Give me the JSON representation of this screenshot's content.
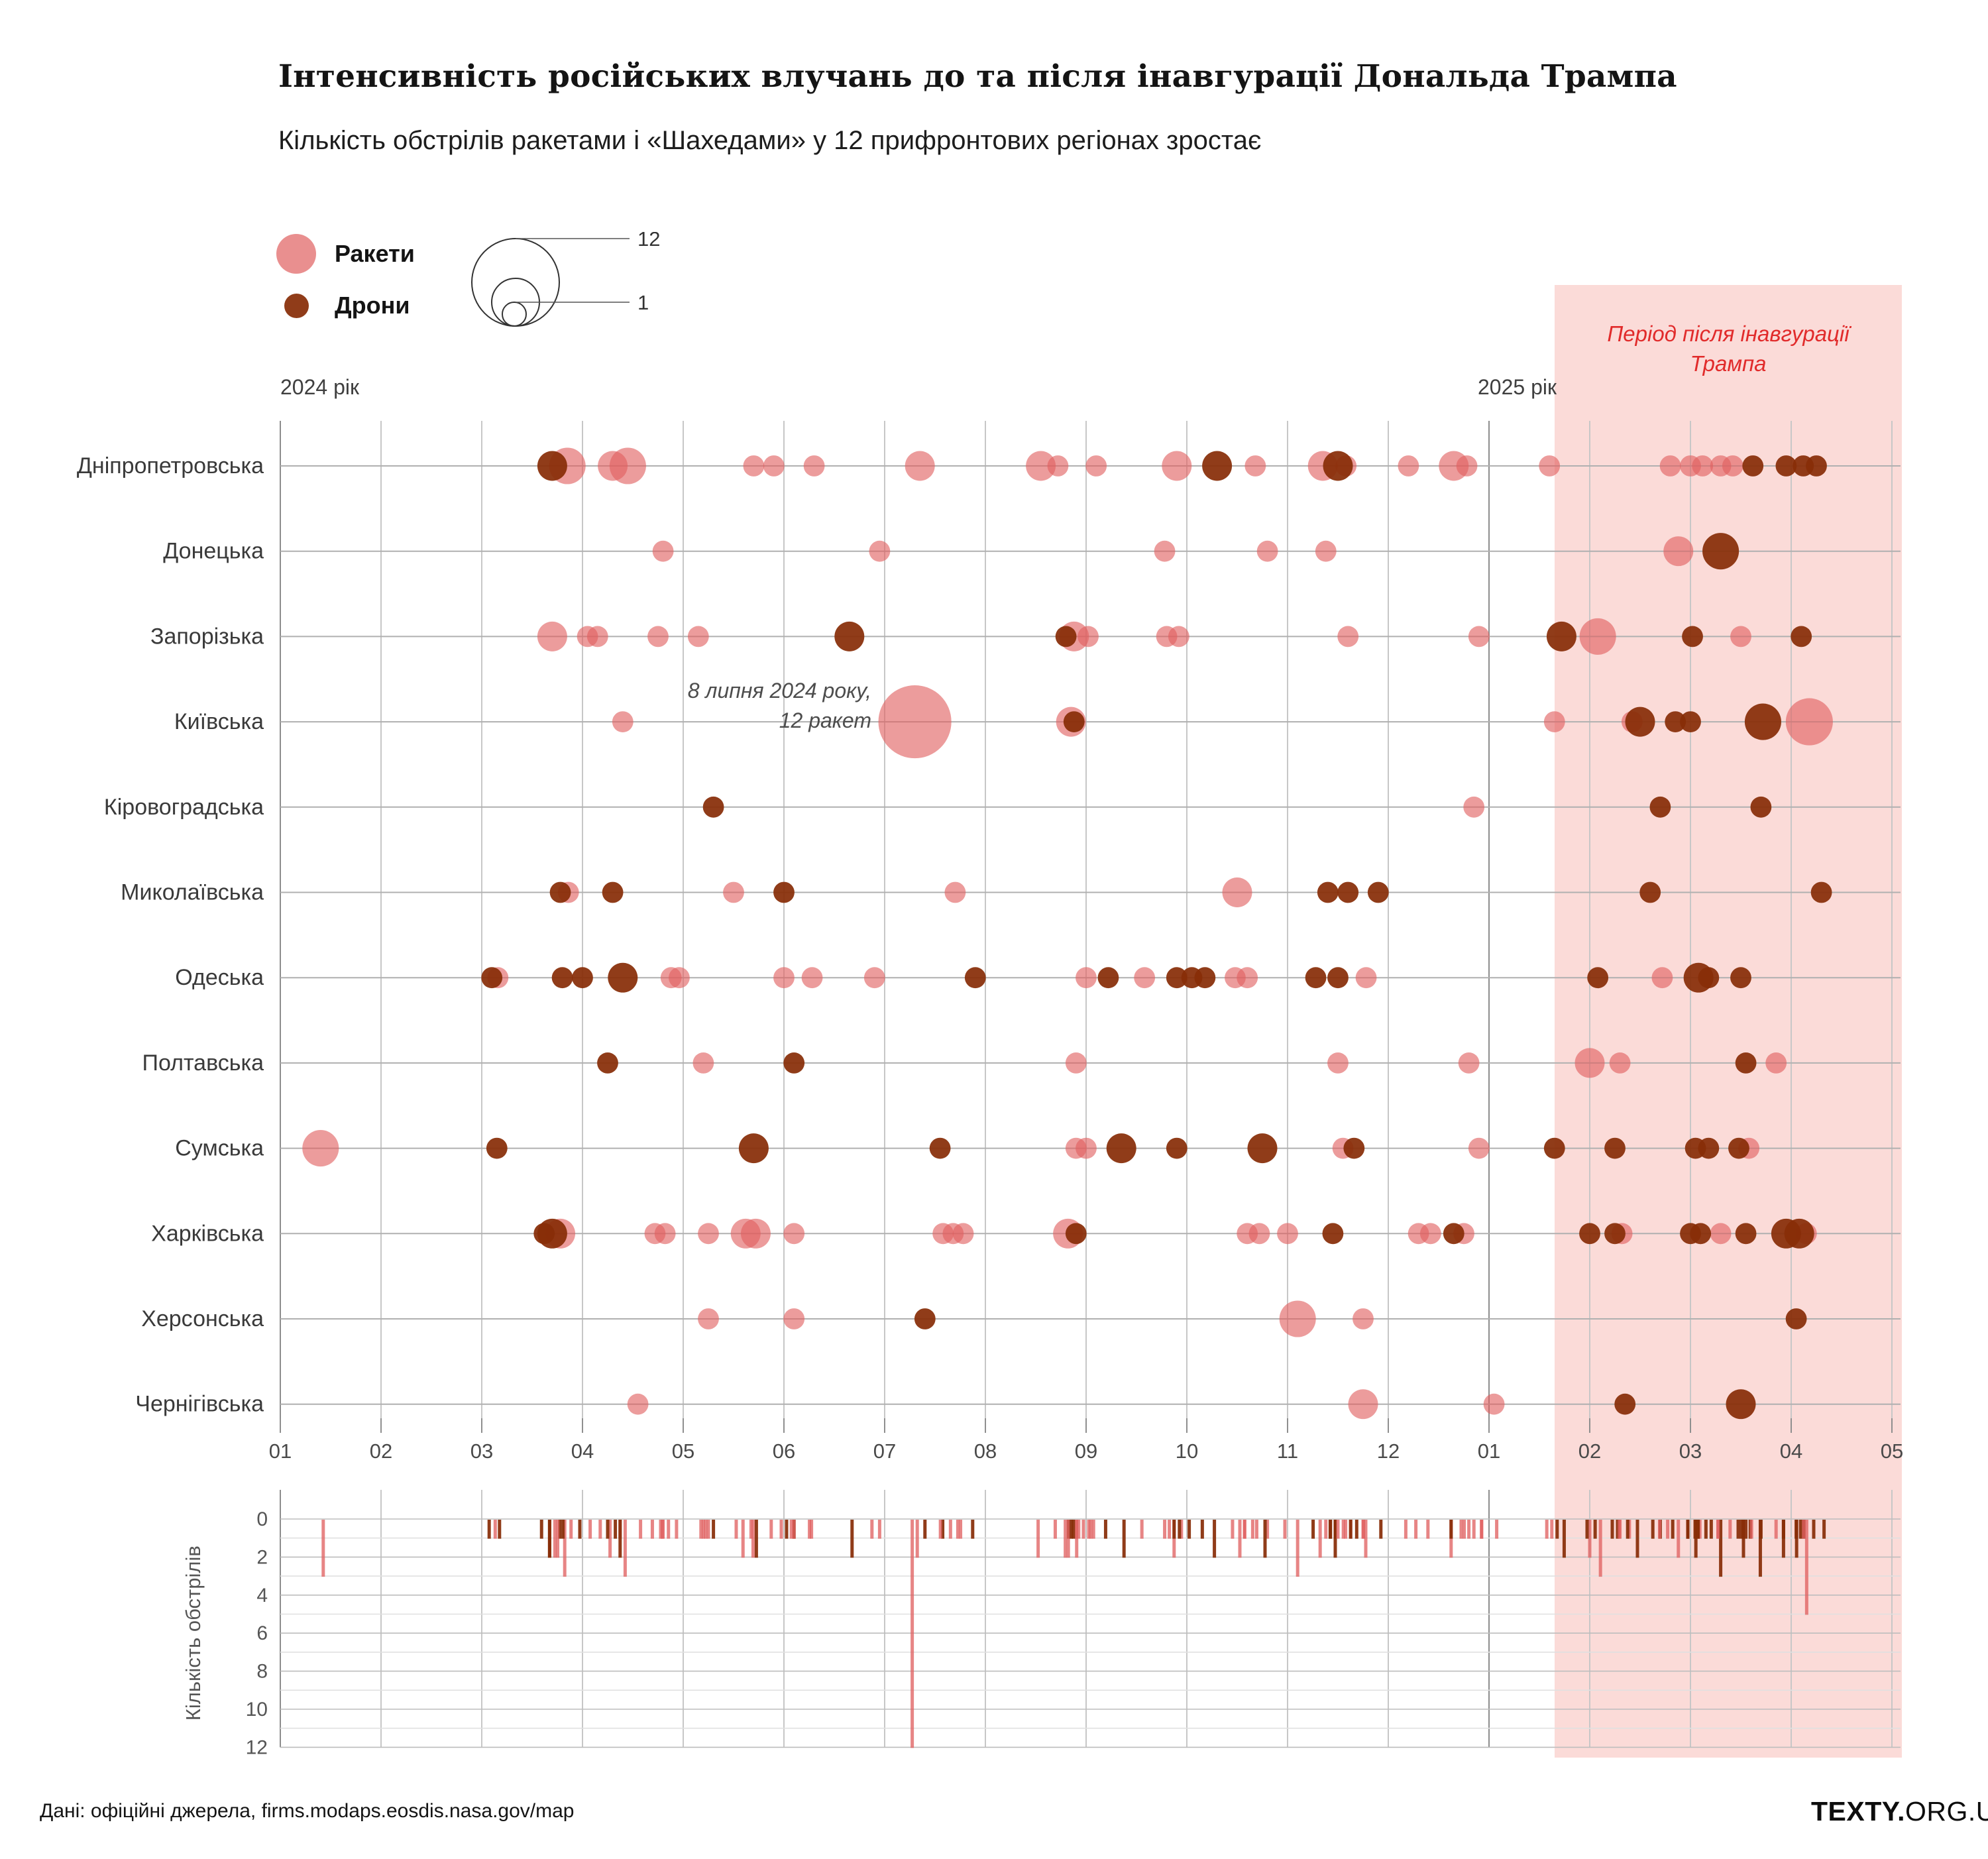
{
  "title": "Інтенсивність російських влучань до та після інавгурації Дональда Трампа",
  "subtitle": "Кількість обстрілів ракетами і «Шахедами» у 12 прифронтових регіонах зростає",
  "legend": {
    "missiles_label": "Ракети",
    "drones_label": "Дрони",
    "size_max_label": "12",
    "size_min_label": "1"
  },
  "band": {
    "label": "Період після інавгурації Трампа",
    "starts_at_month": 13.65
  },
  "annotation": {
    "line1": "8 липня 2024 року,",
    "line2": "12 ракет"
  },
  "year_labels": {
    "y2024": "2024 рік",
    "y2025": "2025 рік"
  },
  "footer": {
    "source": "Дані: офіційні джерела, firms.modaps.eosdis.nasa.gov/map",
    "logo_bold": "TEXTY.",
    "logo_rest": "ORG.UA"
  },
  "colors": {
    "missile_fill": "#e06060",
    "missile_opacity": 0.62,
    "drone_fill": "#882d08",
    "drone_opacity": 0.93,
    "band_fill": "#fbdbd8",
    "band_text": "#e12b2b",
    "grid_month": "#c7c7c7",
    "grid_year": "#8d8d8d",
    "grid_row": "#b0b0b0",
    "bottom_grid_minor": "#e0e0e0",
    "bottom_grid_major": "#bdbdbd"
  },
  "chart_data": {
    "type": "scatter",
    "title": "Інтенсивність російських влучань до та після інавгурації Дональда Трампа",
    "x_scale_note": "month position: 1 = січень 2024, 13 = січень 2025, 17 = травень 2025",
    "month_labels": [
      "01",
      "02",
      "03",
      "04",
      "05",
      "06",
      "07",
      "08",
      "09",
      "10",
      "11",
      "12",
      "01",
      "02",
      "03",
      "04",
      "05"
    ],
    "regions": [
      "Дніпропетровська",
      "Донецька",
      "Запорізька",
      "Київська",
      "Кіровоградська",
      "Миколаївська",
      "Одеська",
      "Полтавська",
      "Сумська",
      "Харківська",
      "Херсонська",
      "Чернігівська"
    ],
    "size_range": [
      1,
      12
    ],
    "points_columns": [
      "region_index",
      "month_position",
      "type (m = ракета/missile, d = дрон/drone)",
      "count"
    ],
    "points": [
      [
        0,
        3.7,
        "d",
        2
      ],
      [
        0,
        3.85,
        "m",
        3
      ],
      [
        0,
        4.3,
        "m",
        2
      ],
      [
        0,
        4.45,
        "m",
        3
      ],
      [
        0,
        5.7,
        "m",
        1
      ],
      [
        0,
        5.9,
        "m",
        1
      ],
      [
        0,
        6.3,
        "m",
        1
      ],
      [
        0,
        7.35,
        "m",
        2
      ],
      [
        0,
        8.55,
        "m",
        2
      ],
      [
        0,
        8.72,
        "m",
        1
      ],
      [
        0,
        9.1,
        "m",
        1
      ],
      [
        0,
        9.9,
        "m",
        2
      ],
      [
        0,
        10.3,
        "d",
        2
      ],
      [
        0,
        10.68,
        "m",
        1
      ],
      [
        0,
        11.35,
        "m",
        2
      ],
      [
        0,
        11.5,
        "d",
        2
      ],
      [
        0,
        11.58,
        "m",
        1
      ],
      [
        0,
        12.2,
        "m",
        1
      ],
      [
        0,
        12.65,
        "m",
        2
      ],
      [
        0,
        12.78,
        "m",
        1
      ],
      [
        0,
        13.6,
        "m",
        1
      ],
      [
        0,
        14.8,
        "m",
        1
      ],
      [
        0,
        15.0,
        "m",
        1
      ],
      [
        0,
        15.12,
        "m",
        1
      ],
      [
        0,
        15.3,
        "m",
        1
      ],
      [
        0,
        15.42,
        "m",
        1
      ],
      [
        0,
        15.62,
        "d",
        1
      ],
      [
        0,
        15.95,
        "d",
        1
      ],
      [
        0,
        16.12,
        "d",
        1
      ],
      [
        0,
        16.25,
        "d",
        1
      ],
      [
        1,
        4.8,
        "m",
        1
      ],
      [
        1,
        6.95,
        "m",
        1
      ],
      [
        1,
        9.78,
        "m",
        1
      ],
      [
        1,
        10.8,
        "m",
        1
      ],
      [
        1,
        11.38,
        "m",
        1
      ],
      [
        1,
        14.88,
        "m",
        2
      ],
      [
        1,
        15.3,
        "d",
        3
      ],
      [
        2,
        3.7,
        "m",
        2
      ],
      [
        2,
        4.05,
        "m",
        1
      ],
      [
        2,
        4.15,
        "m",
        1
      ],
      [
        2,
        4.75,
        "m",
        1
      ],
      [
        2,
        5.15,
        "m",
        1
      ],
      [
        2,
        6.65,
        "d",
        2
      ],
      [
        2,
        8.8,
        "d",
        1
      ],
      [
        2,
        8.88,
        "m",
        2
      ],
      [
        2,
        9.02,
        "m",
        1
      ],
      [
        2,
        9.8,
        "m",
        1
      ],
      [
        2,
        9.92,
        "m",
        1
      ],
      [
        2,
        11.6,
        "m",
        1
      ],
      [
        2,
        12.9,
        "m",
        1
      ],
      [
        2,
        13.72,
        "d",
        2
      ],
      [
        2,
        14.08,
        "m",
        3
      ],
      [
        2,
        15.02,
        "d",
        1
      ],
      [
        2,
        15.5,
        "m",
        1
      ],
      [
        2,
        16.1,
        "d",
        1
      ],
      [
        3,
        4.4,
        "m",
        1
      ],
      [
        3,
        7.3,
        "m",
        12
      ],
      [
        3,
        8.85,
        "m",
        2
      ],
      [
        3,
        8.88,
        "d",
        1
      ],
      [
        3,
        13.65,
        "m",
        1
      ],
      [
        3,
        14.42,
        "m",
        1
      ],
      [
        3,
        14.5,
        "d",
        2
      ],
      [
        3,
        14.85,
        "d",
        1
      ],
      [
        3,
        15.0,
        "d",
        1
      ],
      [
        3,
        15.72,
        "d",
        3
      ],
      [
        3,
        16.18,
        "m",
        5
      ],
      [
        4,
        5.3,
        "d",
        1
      ],
      [
        4,
        12.85,
        "m",
        1
      ],
      [
        4,
        14.7,
        "d",
        1
      ],
      [
        4,
        15.7,
        "d",
        1
      ],
      [
        5,
        3.78,
        "d",
        1
      ],
      [
        5,
        3.86,
        "m",
        1
      ],
      [
        5,
        4.3,
        "d",
        1
      ],
      [
        5,
        5.5,
        "m",
        1
      ],
      [
        5,
        6.0,
        "d",
        1
      ],
      [
        5,
        7.7,
        "m",
        1
      ],
      [
        5,
        10.5,
        "m",
        2
      ],
      [
        5,
        11.4,
        "d",
        1
      ],
      [
        5,
        11.6,
        "d",
        1
      ],
      [
        5,
        11.9,
        "d",
        1
      ],
      [
        5,
        14.6,
        "d",
        1
      ],
      [
        5,
        16.3,
        "d",
        1
      ],
      [
        6,
        3.1,
        "d",
        1
      ],
      [
        6,
        3.16,
        "m",
        1
      ],
      [
        6,
        3.8,
        "d",
        1
      ],
      [
        6,
        4.0,
        "d",
        1
      ],
      [
        6,
        4.4,
        "d",
        2
      ],
      [
        6,
        4.88,
        "m",
        1
      ],
      [
        6,
        4.96,
        "m",
        1
      ],
      [
        6,
        6.0,
        "m",
        1
      ],
      [
        6,
        6.28,
        "m",
        1
      ],
      [
        6,
        6.9,
        "m",
        1
      ],
      [
        6,
        7.9,
        "d",
        1
      ],
      [
        6,
        9.0,
        "m",
        1
      ],
      [
        6,
        9.22,
        "d",
        1
      ],
      [
        6,
        9.58,
        "m",
        1
      ],
      [
        6,
        9.9,
        "d",
        1
      ],
      [
        6,
        10.05,
        "d",
        1
      ],
      [
        6,
        10.18,
        "d",
        1
      ],
      [
        6,
        10.48,
        "m",
        1
      ],
      [
        6,
        10.6,
        "m",
        1
      ],
      [
        6,
        11.28,
        "d",
        1
      ],
      [
        6,
        11.5,
        "d",
        1
      ],
      [
        6,
        11.78,
        "m",
        1
      ],
      [
        6,
        14.08,
        "d",
        1
      ],
      [
        6,
        14.72,
        "m",
        1
      ],
      [
        6,
        15.08,
        "d",
        2
      ],
      [
        6,
        15.18,
        "d",
        1
      ],
      [
        6,
        15.5,
        "d",
        1
      ],
      [
        7,
        4.25,
        "d",
        1
      ],
      [
        7,
        5.2,
        "m",
        1
      ],
      [
        7,
        6.1,
        "d",
        1
      ],
      [
        7,
        8.9,
        "m",
        1
      ],
      [
        7,
        11.5,
        "m",
        1
      ],
      [
        7,
        12.8,
        "m",
        1
      ],
      [
        7,
        14.0,
        "m",
        2
      ],
      [
        7,
        14.3,
        "m",
        1
      ],
      [
        7,
        15.55,
        "d",
        1
      ],
      [
        7,
        15.85,
        "m",
        1
      ],
      [
        8,
        1.4,
        "m",
        3
      ],
      [
        8,
        3.15,
        "d",
        1
      ],
      [
        8,
        5.7,
        "d",
        2
      ],
      [
        8,
        7.55,
        "d",
        1
      ],
      [
        8,
        8.9,
        "m",
        1
      ],
      [
        8,
        9.0,
        "m",
        1
      ],
      [
        8,
        9.35,
        "d",
        2
      ],
      [
        8,
        9.9,
        "d",
        1
      ],
      [
        8,
        10.75,
        "d",
        2
      ],
      [
        8,
        11.55,
        "m",
        1
      ],
      [
        8,
        11.66,
        "d",
        1
      ],
      [
        8,
        12.9,
        "m",
        1
      ],
      [
        8,
        13.65,
        "d",
        1
      ],
      [
        8,
        14.25,
        "d",
        1
      ],
      [
        8,
        15.05,
        "d",
        1
      ],
      [
        8,
        15.18,
        "d",
        1
      ],
      [
        8,
        15.48,
        "d",
        1
      ],
      [
        8,
        15.58,
        "m",
        1
      ],
      [
        9,
        3.62,
        "d",
        1
      ],
      [
        9,
        3.7,
        "d",
        2
      ],
      [
        9,
        3.78,
        "m",
        2
      ],
      [
        9,
        4.72,
        "m",
        1
      ],
      [
        9,
        4.82,
        "m",
        1
      ],
      [
        9,
        5.25,
        "m",
        1
      ],
      [
        9,
        5.62,
        "m",
        2
      ],
      [
        9,
        5.72,
        "m",
        2
      ],
      [
        9,
        6.1,
        "m",
        1
      ],
      [
        9,
        7.58,
        "m",
        1
      ],
      [
        9,
        7.68,
        "m",
        1
      ],
      [
        9,
        7.78,
        "m",
        1
      ],
      [
        9,
        8.82,
        "m",
        2
      ],
      [
        9,
        8.9,
        "d",
        1
      ],
      [
        9,
        10.6,
        "m",
        1
      ],
      [
        9,
        10.72,
        "m",
        1
      ],
      [
        9,
        11.0,
        "m",
        1
      ],
      [
        9,
        11.45,
        "d",
        1
      ],
      [
        9,
        12.3,
        "m",
        1
      ],
      [
        9,
        12.42,
        "m",
        1
      ],
      [
        9,
        12.65,
        "d",
        1
      ],
      [
        9,
        12.75,
        "m",
        1
      ],
      [
        9,
        14.0,
        "d",
        1
      ],
      [
        9,
        14.25,
        "d",
        1
      ],
      [
        9,
        14.32,
        "m",
        1
      ],
      [
        9,
        15.0,
        "d",
        1
      ],
      [
        9,
        15.1,
        "d",
        1
      ],
      [
        9,
        15.3,
        "m",
        1
      ],
      [
        9,
        15.55,
        "d",
        1
      ],
      [
        9,
        15.95,
        "d",
        2
      ],
      [
        9,
        16.08,
        "d",
        2
      ],
      [
        9,
        16.15,
        "m",
        1
      ],
      [
        10,
        5.25,
        "m",
        1
      ],
      [
        10,
        6.1,
        "m",
        1
      ],
      [
        10,
        7.4,
        "d",
        1
      ],
      [
        10,
        11.1,
        "m",
        3
      ],
      [
        10,
        11.75,
        "m",
        1
      ],
      [
        10,
        16.05,
        "d",
        1
      ],
      [
        11,
        4.55,
        "m",
        1
      ],
      [
        11,
        11.75,
        "m",
        2
      ],
      [
        11,
        13.05,
        "m",
        1
      ],
      [
        11,
        14.35,
        "d",
        1
      ],
      [
        11,
        15.5,
        "d",
        2
      ]
    ],
    "bottom": {
      "ylabel": "Кількість обстрілів",
      "tick_labels": [
        0,
        2,
        4,
        6,
        8,
        10,
        12
      ],
      "ylim": [
        0,
        12
      ],
      "note": "bars hang downward from 0; one bar per point above (same x, height = count, color = type)"
    },
    "annotation_point": {
      "region": "Київська",
      "month": 7.3,
      "count": 12,
      "type": "m"
    },
    "legend_position": "top-left",
    "grid": true
  }
}
